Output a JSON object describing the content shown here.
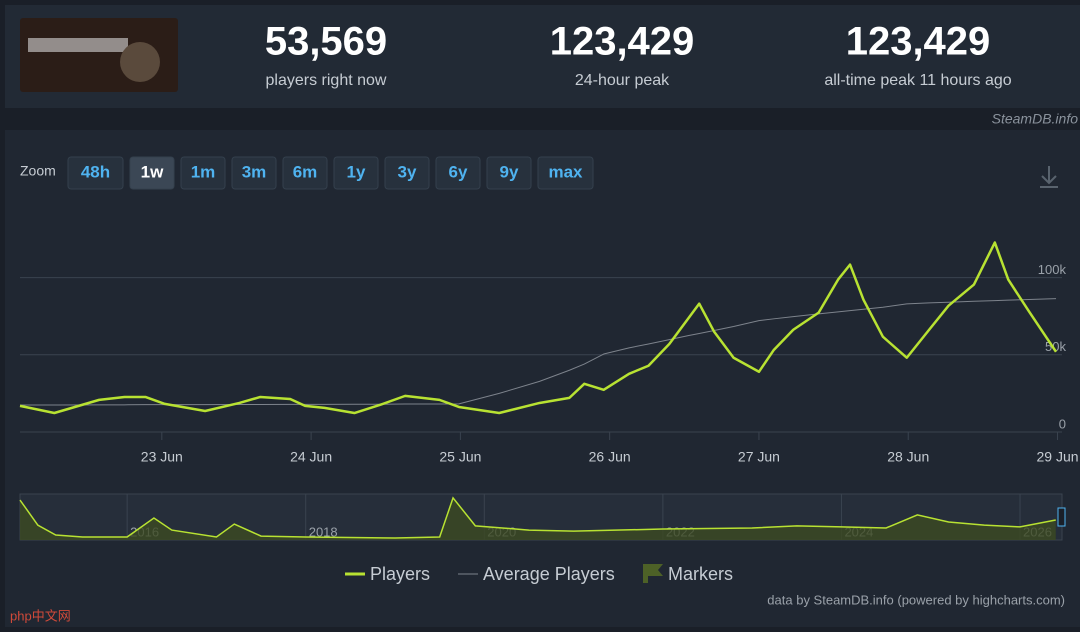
{
  "header": {
    "stats": [
      {
        "value": "53,569",
        "label": "players right now"
      },
      {
        "value": "123,429",
        "label": "24-hour peak"
      },
      {
        "value": "123,429",
        "label": "all-time peak 11 hours ago"
      }
    ]
  },
  "watermark": "SteamDB.info",
  "zoom": {
    "label": "Zoom",
    "buttons": [
      "48h",
      "1w",
      "1m",
      "3m",
      "6m",
      "1y",
      "3y",
      "6y",
      "9y",
      "max"
    ],
    "active": 1
  },
  "chart_data": {
    "type": "line",
    "x": [
      22.05,
      22.28,
      22.58,
      22.75,
      22.89,
      23.02,
      23.29,
      23.52,
      23.66,
      23.86,
      23.96,
      24.09,
      24.29,
      24.46,
      24.63,
      24.86,
      24.99,
      25.26,
      25.53,
      25.73,
      25.83,
      25.96,
      26.13,
      26.26,
      26.4,
      26.53,
      26.6,
      26.7,
      26.83,
      27.0,
      27.1,
      27.23,
      27.4,
      27.53,
      27.61,
      27.7,
      27.83,
      27.99,
      28.14,
      28.27,
      28.44,
      28.58,
      28.67,
      28.81,
      28.99
    ],
    "series": [
      {
        "name": "Players",
        "color": "#b8e232",
        "values": [
          16900,
          12300,
          20800,
          22700,
          22700,
          18200,
          13600,
          18800,
          22700,
          21400,
          16900,
          15600,
          12300,
          17500,
          23400,
          20800,
          16200,
          12300,
          18800,
          22100,
          31200,
          27300,
          37700,
          42900,
          57100,
          74000,
          83100,
          64900,
          48100,
          39000,
          53200,
          66200,
          77300,
          98700,
          108400,
          85700,
          61700,
          48100,
          66200,
          81800,
          95500,
          122700,
          98700,
          77900,
          51900
        ]
      },
      {
        "name": "Average Players",
        "color": "#7d838c",
        "values": [
          17500,
          17500,
          17600,
          17600,
          17700,
          17700,
          17700,
          17800,
          17800,
          17900,
          17900,
          17900,
          18000,
          18000,
          18100,
          18100,
          18200,
          25000,
          32800,
          40000,
          44000,
          50500,
          54500,
          57000,
          59800,
          62500,
          63800,
          65700,
          68300,
          72100,
          73300,
          74700,
          76500,
          77800,
          78600,
          79500,
          80800,
          83000,
          83600,
          84000,
          84700,
          85100,
          85400,
          85800,
          86400
        ]
      }
    ],
    "markers": {
      "name": "Markers",
      "color": "#4d6127"
    },
    "xlim": [
      22.05,
      29.03
    ],
    "xticks": [
      {
        "value": 23,
        "label": "23 Jun"
      },
      {
        "value": 24,
        "label": "24 Jun"
      },
      {
        "value": 25,
        "label": "25 Jun"
      },
      {
        "value": 26,
        "label": "26 Jun"
      },
      {
        "value": 27,
        "label": "27 Jun"
      },
      {
        "value": 28,
        "label": "28 Jun"
      },
      {
        "value": 29,
        "label": "29 Jun"
      }
    ],
    "ylim": [
      0,
      147000
    ],
    "yticks": [
      0,
      {
        "value": 50000,
        "label": "50k"
      },
      {
        "value": 100000,
        "label": "100k"
      }
    ],
    "grid": true
  },
  "navigator": {
    "type": "area",
    "color": "#b8e232",
    "x": [
      2014.8,
      2015.0,
      2015.2,
      2015.5,
      2016.0,
      2016.3,
      2016.5,
      2017.0,
      2017.2,
      2017.5,
      2018.0,
      2019.0,
      2019.5,
      2019.65,
      2019.9,
      2020.5,
      2021.0,
      2022.0,
      2023.0,
      2023.5,
      2024.0,
      2024.5,
      2024.85,
      2025.2,
      2025.6,
      2026.0,
      2026.4
    ],
    "values": [
      113000,
      42000,
      14000,
      8500,
      8500,
      62000,
      28000,
      8500,
      45000,
      11000,
      8500,
      5600,
      8500,
      119000,
      40000,
      28000,
      25000,
      31000,
      34000,
      40000,
      37000,
      34000,
      71000,
      51000,
      42000,
      37000,
      56500
    ],
    "xlim": [
      2014.8,
      2026.47
    ],
    "xticks": [
      2016,
      2018,
      2020,
      2022,
      2024,
      2026
    ],
    "ylim": [
      0,
      130000
    ]
  },
  "credit": "data by SteamDB.info (powered by highcharts.com)",
  "corner_watermark": "php中文网"
}
